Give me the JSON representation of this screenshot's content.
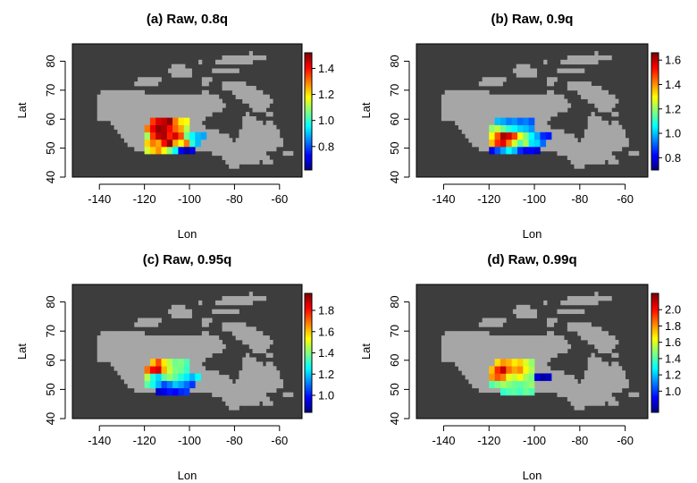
{
  "figure": {
    "land_color": "#a6a6a6",
    "background_color": "#3d3d3d",
    "colormap": [
      "#00007f",
      "#0000ff",
      "#007fff",
      "#00ffff",
      "#7fff7f",
      "#ffff00",
      "#ff7f00",
      "#ff0000",
      "#7f0000"
    ]
  },
  "chart_data": [
    {
      "type": "heatmap",
      "title": "(a) Raw, 0.8q",
      "xlabel": "Lon",
      "ylabel": "Lat",
      "xlim": [
        -152,
        -50
      ],
      "ylim": [
        40,
        86
      ],
      "xticks": [
        -140,
        -120,
        -100,
        -80,
        -60
      ],
      "yticks": [
        40,
        50,
        60,
        70,
        80
      ],
      "colorbar": {
        "min": 0.62,
        "max": 1.52,
        "ticks": [
          0.8,
          1.0,
          1.2,
          1.4
        ]
      },
      "grid_origin": {
        "lon": -120,
        "lat": 48
      },
      "cell_size": {
        "dlon": 2.5,
        "dlat": 2.5
      },
      "values": [
        [
          1.14,
          1.22,
          1.28,
          1.18,
          1.08,
          0.96,
          0.72,
          0.66,
          0.7,
          null,
          null
        ],
        [
          1.22,
          1.3,
          1.26,
          1.4,
          1.5,
          1.26,
          1.18,
          1.3,
          1.0,
          0.9,
          null
        ],
        [
          1.1,
          1.36,
          1.46,
          1.48,
          1.38,
          1.44,
          1.34,
          1.06,
          0.96,
          0.9,
          0.88
        ],
        [
          1.3,
          1.42,
          1.5,
          1.48,
          1.4,
          1.32,
          1.26,
          1.12,
          null,
          null,
          null
        ],
        [
          null,
          1.36,
          1.44,
          1.46,
          1.5,
          1.3,
          1.2,
          1.18,
          null,
          null,
          null
        ]
      ]
    },
    {
      "type": "heatmap",
      "title": "(b) Raw, 0.9q",
      "xlabel": "Lon",
      "ylabel": "Lat",
      "xlim": [
        -152,
        -50
      ],
      "ylim": [
        40,
        86
      ],
      "xticks": [
        -140,
        -120,
        -100,
        -80,
        -60
      ],
      "yticks": [
        40,
        50,
        60,
        70,
        80
      ],
      "colorbar": {
        "min": 0.7,
        "max": 1.66,
        "ticks": [
          0.8,
          1.0,
          1.2,
          1.4,
          1.6
        ]
      },
      "grid_origin": {
        "lon": -120,
        "lat": 48
      },
      "cell_size": {
        "dlon": 2.5,
        "dlat": 2.5
      },
      "values": [
        [
          0.8,
          0.9,
          0.98,
          1.06,
          1.0,
          0.86,
          0.8,
          0.82,
          0.78,
          null,
          null
        ],
        [
          1.36,
          1.5,
          1.56,
          1.42,
          1.26,
          1.14,
          1.22,
          1.04,
          1.02,
          0.92,
          null
        ],
        [
          1.3,
          1.46,
          1.62,
          1.58,
          1.48,
          1.3,
          1.18,
          1.06,
          0.98,
          0.86,
          0.84
        ],
        [
          1.2,
          1.24,
          1.16,
          1.1,
          1.06,
          1.02,
          1.0,
          0.96,
          null,
          null,
          null
        ],
        [
          null,
          1.0,
          0.98,
          0.94,
          0.96,
          0.92,
          0.94,
          0.9,
          null,
          null,
          null
        ]
      ]
    },
    {
      "type": "heatmap",
      "title": "(c) Raw, 0.95q",
      "xlabel": "Lon",
      "ylabel": "Lat",
      "xlim": [
        -152,
        -50
      ],
      "ylim": [
        40,
        86
      ],
      "xticks": [
        -140,
        -120,
        -100,
        -80,
        -60
      ],
      "yticks": [
        40,
        50,
        60,
        70,
        80
      ],
      "colorbar": {
        "min": 0.84,
        "max": 1.96,
        "ticks": [
          1.0,
          1.2,
          1.4,
          1.6,
          1.8
        ]
      },
      "grid_origin": {
        "lon": -120,
        "lat": 48
      },
      "cell_size": {
        "dlon": 2.5,
        "dlat": 2.5
      },
      "values": [
        [
          null,
          null,
          0.92,
          0.96,
          1.0,
          0.98,
          1.02,
          1.04,
          null,
          null,
          null
        ],
        [
          1.36,
          1.28,
          1.18,
          1.06,
          1.12,
          1.2,
          1.16,
          1.1,
          1.04,
          null,
          null
        ],
        [
          1.46,
          1.3,
          1.22,
          1.36,
          1.42,
          1.36,
          1.3,
          1.24,
          1.18,
          1.26,
          null
        ],
        [
          1.7,
          1.82,
          1.86,
          1.62,
          1.48,
          1.4,
          1.38,
          1.32,
          null,
          null,
          null
        ],
        [
          null,
          1.6,
          1.74,
          1.56,
          1.46,
          1.38,
          1.4,
          1.34,
          null,
          null,
          null
        ]
      ]
    },
    {
      "type": "heatmap",
      "title": "(d) Raw, 0.99q",
      "xlabel": "Lon",
      "ylabel": "Lat",
      "xlim": [
        -152,
        -50
      ],
      "ylim": [
        40,
        86
      ],
      "xticks": [
        -140,
        -120,
        -100,
        -80,
        -60
      ],
      "yticks": [
        40,
        50,
        60,
        70,
        80
      ],
      "colorbar": {
        "min": 0.74,
        "max": 2.2,
        "ticks": [
          1.0,
          1.2,
          1.4,
          1.6,
          1.8,
          2.0
        ]
      },
      "grid_origin": {
        "lon": -120,
        "lat": 48
      },
      "cell_size": {
        "dlon": 2.5,
        "dlat": 2.5
      },
      "values": [
        [
          null,
          null,
          1.36,
          1.4,
          1.42,
          1.38,
          1.44,
          1.4,
          null,
          null,
          null
        ],
        [
          1.4,
          1.46,
          1.52,
          1.48,
          1.44,
          1.42,
          1.46,
          1.5,
          null,
          null,
          null
        ],
        [
          1.8,
          1.9,
          1.84,
          1.62,
          1.58,
          1.66,
          1.52,
          1.46,
          0.86,
          0.8,
          0.84
        ],
        [
          1.74,
          1.96,
          2.1,
          1.86,
          1.78,
          1.82,
          1.64,
          1.54,
          null,
          null,
          null
        ],
        [
          null,
          1.7,
          1.8,
          1.76,
          1.68,
          1.72,
          1.6,
          1.5,
          null,
          null,
          null
        ]
      ]
    }
  ]
}
